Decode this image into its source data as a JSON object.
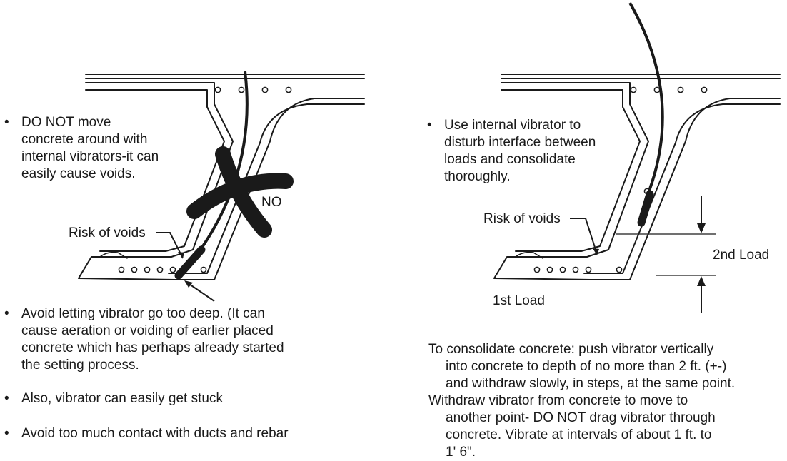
{
  "left": {
    "bullets": [
      {
        "lines": [
          "DO NOT move",
          "concrete around with",
          "internal vibrators-it can",
          "easily cause voids."
        ]
      },
      {
        "lines": [
          "Avoid letting vibrator go too deep. (It can",
          "cause aeration or voiding of earlier placed",
          "concrete which has perhaps already started",
          "the setting process."
        ]
      },
      {
        "lines": [
          "Also, vibrator can easily get stuck"
        ]
      },
      {
        "lines": [
          "Avoid too much contact with ducts and rebar"
        ]
      }
    ],
    "risk_label": "Risk of voids",
    "no_label": "NO"
  },
  "right": {
    "bullet": {
      "lines": [
        "Use internal vibrator to",
        "disturb interface between",
        "loads and consolidate",
        "thoroughly."
      ]
    },
    "risk_label": "Risk of voids",
    "second_load": "2nd Load",
    "first_load": "1st Load",
    "paragraph1": [
      "To consolidate concrete: push vibrator vertically",
      "into concrete to depth of no more than 2 ft. (+-)",
      "and withdraw slowly, in steps, at the same point."
    ],
    "paragraph2": [
      "Withdraw vibrator from concrete to move to",
      "another point- DO NOT drag vibrator through",
      "concrete. Vibrate at intervals of about 1 ft. to",
      "1' 6\"."
    ]
  },
  "bullet_char": "•"
}
